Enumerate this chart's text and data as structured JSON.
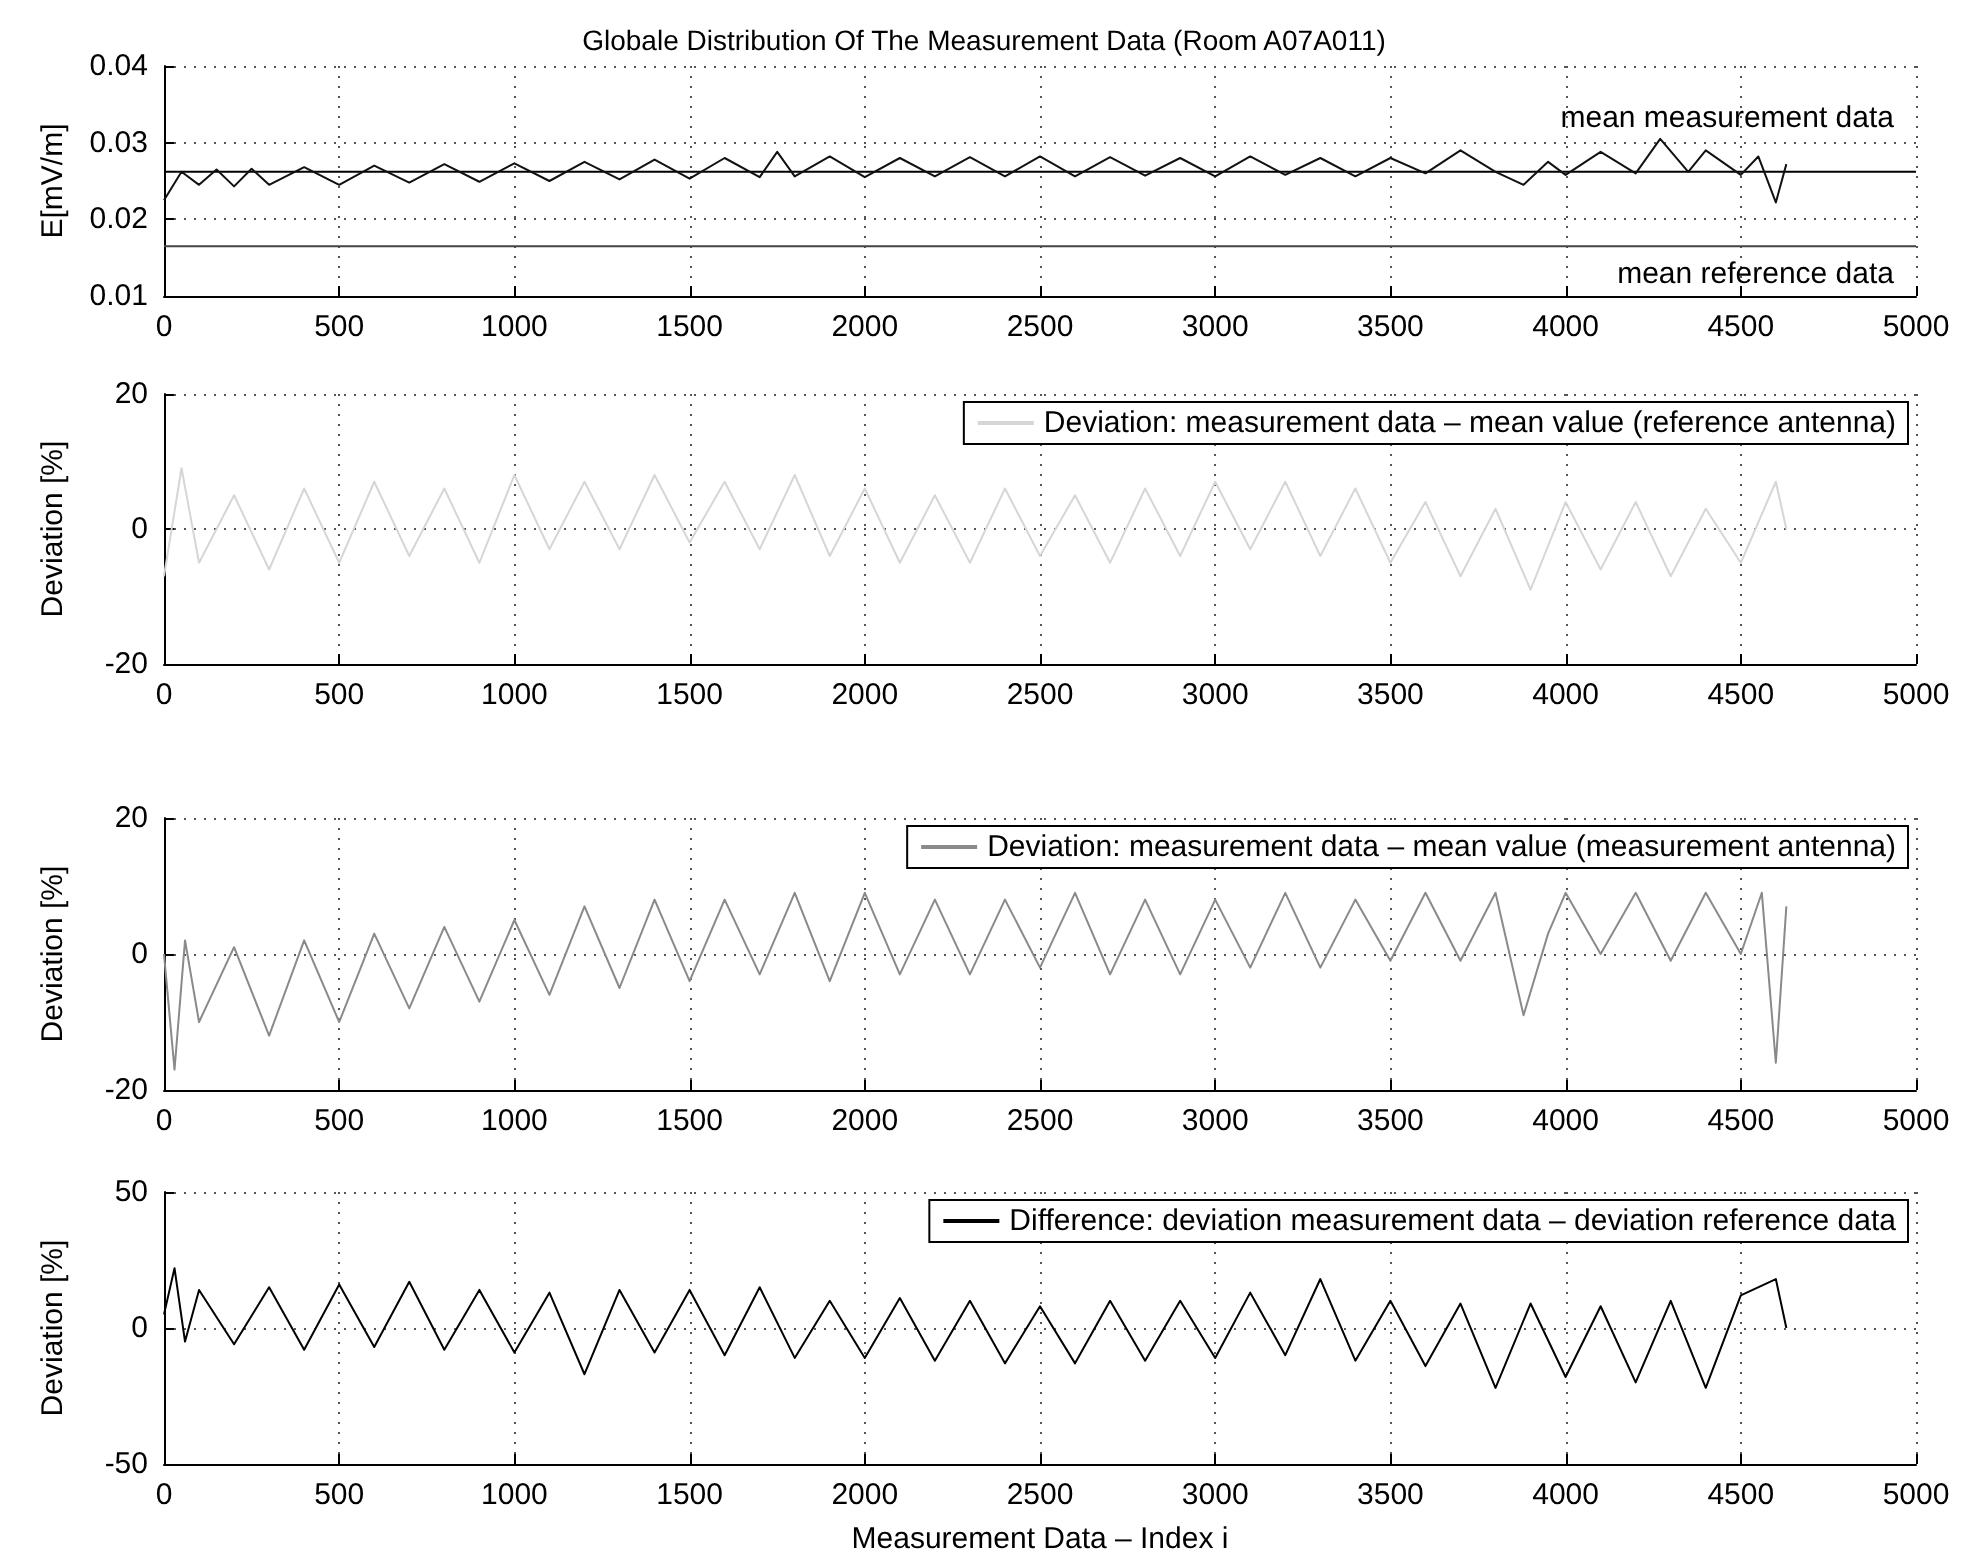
{
  "chart_data": [
    {
      "type": "line",
      "title": "Globale Distribution Of The Measurement Data (Room A07A011)",
      "ylabel": "E[mV/m]",
      "xlim": [
        0,
        5000
      ],
      "xticks": [
        0,
        500,
        1000,
        1500,
        2000,
        2500,
        3000,
        3500,
        4000,
        4500,
        5000
      ],
      "ylim": [
        0.01,
        0.04
      ],
      "yticks": [
        0.01,
        0.02,
        0.03,
        0.04
      ],
      "grid": true,
      "legend": false,
      "ref_lines": [
        {
          "axis": "y",
          "value": 0.0262,
          "label": "mean measurement data",
          "color": "#000000"
        },
        {
          "axis": "y",
          "value": 0.0165,
          "label": "mean reference data",
          "color": "#444444"
        }
      ],
      "series": [
        {
          "color": "#111111",
          "x": [
            0,
            50,
            100,
            150,
            200,
            250,
            300,
            400,
            500,
            600,
            700,
            800,
            900,
            1000,
            1100,
            1200,
            1300,
            1400,
            1500,
            1600,
            1700,
            1750,
            1800,
            1900,
            2000,
            2100,
            2200,
            2300,
            2400,
            2500,
            2600,
            2700,
            2800,
            2900,
            3000,
            3100,
            3200,
            3300,
            3400,
            3500,
            3600,
            3700,
            3800,
            3880,
            3950,
            4000,
            4100,
            4200,
            4270,
            4350,
            4400,
            4500,
            4550,
            4600,
            4630
          ],
          "values": [
            0.0225,
            0.0262,
            0.0245,
            0.0265,
            0.0243,
            0.0266,
            0.0245,
            0.0268,
            0.0245,
            0.027,
            0.0248,
            0.0272,
            0.0249,
            0.0273,
            0.025,
            0.0275,
            0.0252,
            0.0278,
            0.0253,
            0.028,
            0.0255,
            0.0288,
            0.0256,
            0.0282,
            0.0255,
            0.028,
            0.0256,
            0.0281,
            0.0256,
            0.0282,
            0.0256,
            0.0281,
            0.0257,
            0.028,
            0.0256,
            0.0282,
            0.0258,
            0.028,
            0.0256,
            0.028,
            0.026,
            0.029,
            0.0262,
            0.0245,
            0.0275,
            0.0258,
            0.0288,
            0.026,
            0.0305,
            0.0262,
            0.029,
            0.0258,
            0.0282,
            0.0222,
            0.0272
          ]
        }
      ]
    },
    {
      "type": "line",
      "ylabel": "Deviation [%]",
      "xlim": [
        0,
        5000
      ],
      "xticks": [
        0,
        500,
        1000,
        1500,
        2000,
        2500,
        3000,
        3500,
        4000,
        4500,
        5000
      ],
      "ylim": [
        -20,
        20
      ],
      "yticks": [
        -20,
        0,
        20
      ],
      "grid": true,
      "legend": "top right",
      "series": [
        {
          "name": "Deviation: measurement data – mean value (reference antenna)",
          "color": "#d6d6d6",
          "x": [
            0,
            50,
            100,
            200,
            300,
            400,
            500,
            600,
            700,
            800,
            900,
            1000,
            1100,
            1200,
            1300,
            1400,
            1500,
            1600,
            1700,
            1800,
            1900,
            2000,
            2100,
            2200,
            2300,
            2400,
            2500,
            2600,
            2700,
            2800,
            2900,
            3000,
            3100,
            3200,
            3300,
            3400,
            3500,
            3600,
            3700,
            3800,
            3900,
            4000,
            4100,
            4200,
            4300,
            4400,
            4500,
            4600,
            4630
          ],
          "values": [
            -7,
            9,
            -5,
            5,
            -6,
            6,
            -5,
            7,
            -4,
            6,
            -5,
            8,
            -3,
            7,
            -3,
            8,
            -2,
            7,
            -3,
            8,
            -4,
            6,
            -5,
            5,
            -5,
            6,
            -4,
            5,
            -5,
            6,
            -4,
            7,
            -3,
            7,
            -4,
            6,
            -5,
            4,
            -7,
            3,
            -9,
            4,
            -6,
            4,
            -7,
            3,
            -5,
            7,
            0
          ]
        }
      ]
    },
    {
      "type": "line",
      "ylabel": "Deviation [%]",
      "xlim": [
        0,
        5000
      ],
      "xticks": [
        0,
        500,
        1000,
        1500,
        2000,
        2500,
        3000,
        3500,
        4000,
        4500,
        5000
      ],
      "ylim": [
        -20,
        20
      ],
      "yticks": [
        -20,
        0,
        20
      ],
      "grid": true,
      "legend": "top right",
      "series": [
        {
          "name": "Deviation: measurement data – mean value (measurement antenna)",
          "color": "#8a8a8a",
          "x": [
            0,
            30,
            60,
            100,
            200,
            300,
            400,
            500,
            600,
            700,
            800,
            900,
            1000,
            1100,
            1200,
            1300,
            1400,
            1500,
            1600,
            1700,
            1800,
            1900,
            2000,
            2100,
            2200,
            2300,
            2400,
            2500,
            2600,
            2700,
            2800,
            2900,
            3000,
            3100,
            3200,
            3300,
            3400,
            3500,
            3600,
            3700,
            3800,
            3880,
            3950,
            4000,
            4100,
            4200,
            4300,
            4400,
            4500,
            4560,
            4600,
            4630
          ],
          "values": [
            0,
            -17,
            2,
            -10,
            1,
            -12,
            2,
            -10,
            3,
            -8,
            4,
            -7,
            5,
            -6,
            7,
            -5,
            8,
            -4,
            8,
            -3,
            9,
            -4,
            9,
            -3,
            8,
            -3,
            8,
            -2,
            9,
            -3,
            8,
            -3,
            8,
            -2,
            9,
            -2,
            8,
            -1,
            9,
            -1,
            9,
            -9,
            3,
            9,
            0,
            9,
            -1,
            9,
            0,
            9,
            -16,
            7
          ]
        }
      ]
    },
    {
      "type": "line",
      "ylabel": "Deviation [%]",
      "xlabel": "Measurement Data – Index i",
      "xlim": [
        0,
        5000
      ],
      "xticks": [
        0,
        500,
        1000,
        1500,
        2000,
        2500,
        3000,
        3500,
        4000,
        4500,
        5000
      ],
      "ylim": [
        -50,
        50
      ],
      "yticks": [
        -50,
        0,
        50
      ],
      "grid": true,
      "legend": "top right",
      "series": [
        {
          "name": "Difference: deviation measurement data – deviation reference data",
          "color": "#000000",
          "x": [
            0,
            30,
            60,
            100,
            200,
            300,
            400,
            500,
            600,
            700,
            800,
            900,
            1000,
            1100,
            1200,
            1300,
            1400,
            1500,
            1600,
            1700,
            1800,
            1900,
            2000,
            2100,
            2200,
            2300,
            2400,
            2500,
            2600,
            2700,
            2800,
            2900,
            3000,
            3100,
            3200,
            3300,
            3400,
            3500,
            3600,
            3700,
            3800,
            3900,
            4000,
            4100,
            4200,
            4300,
            4400,
            4500,
            4600,
            4630
          ],
          "values": [
            5,
            22,
            -5,
            14,
            -6,
            15,
            -8,
            16,
            -7,
            17,
            -8,
            14,
            -9,
            13,
            -17,
            14,
            -9,
            14,
            -10,
            15,
            -11,
            10,
            -11,
            11,
            -12,
            10,
            -13,
            8,
            -13,
            10,
            -12,
            10,
            -11,
            13,
            -10,
            18,
            -12,
            10,
            -14,
            9,
            -22,
            9,
            -18,
            8,
            -20,
            10,
            -22,
            12,
            18,
            0
          ]
        }
      ]
    }
  ]
}
